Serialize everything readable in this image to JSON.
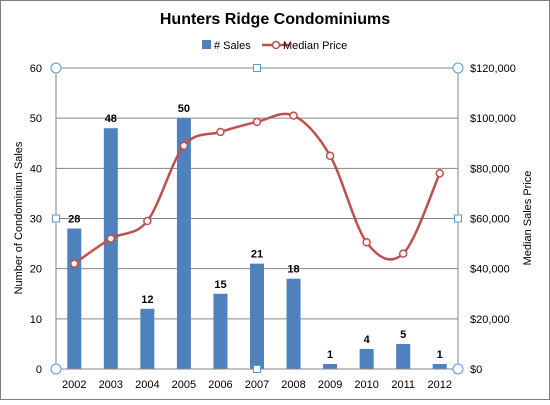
{
  "chart_data": {
    "type": "bar",
    "title": "Hunters Ridge Condominiums",
    "categories": [
      "2002",
      "2003",
      "2004",
      "2005",
      "2006",
      "2007",
      "2008",
      "2009",
      "2010",
      "2011",
      "2012"
    ],
    "series": [
      {
        "name": "# Sales",
        "type": "bar",
        "axis": "left",
        "color": "#4f81bd",
        "values": [
          28,
          48,
          12,
          50,
          15,
          21,
          18,
          1,
          4,
          5,
          1
        ],
        "data_labels": [
          "28",
          "48",
          "12",
          "50",
          "15",
          "21",
          "18",
          "1",
          "4",
          "5",
          "1"
        ]
      },
      {
        "name": "Median Price",
        "type": "line",
        "smooth": true,
        "axis": "right",
        "color": "#c0504d",
        "values": [
          42000,
          52000,
          59000,
          89000,
          94500,
          98500,
          101000,
          85000,
          50500,
          46000,
          78000
        ]
      }
    ],
    "y_left": {
      "label": "Number of Condominium Sales",
      "ylim": [
        0,
        60
      ],
      "ticks": [
        "0",
        "10",
        "20",
        "30",
        "40",
        "50",
        "60"
      ]
    },
    "y_right": {
      "label": "Median Sales Price",
      "ylim": [
        0,
        120000
      ],
      "ticks": [
        "$0",
        "$20,000",
        "$40,000",
        "$60,000",
        "$80,000",
        "$100,000",
        "$120,000"
      ]
    },
    "legend_position": "top",
    "grid": true,
    "grid_color": "#868686"
  }
}
